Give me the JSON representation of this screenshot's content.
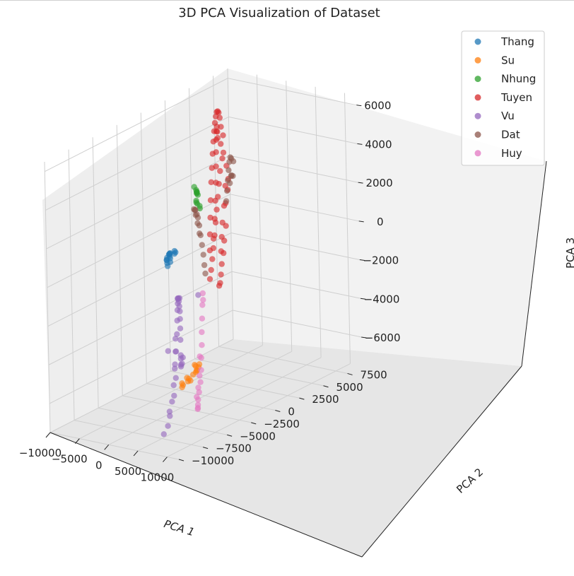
{
  "chart_data": {
    "type": "scatter",
    "projection": "3d",
    "title": "3D PCA Visualization of Dataset",
    "xlabel": "PCA 1",
    "ylabel": "PCA 2",
    "zlabel": "PCA 3",
    "xlim": [
      -10000,
      12000
    ],
    "ylim": [
      -10000,
      9000
    ],
    "zlim": [
      -7500,
      6500
    ],
    "x_ticks": [
      -10000,
      -5000,
      0,
      5000,
      10000
    ],
    "y_ticks": [
      -10000,
      -7500,
      -5000,
      -2500,
      0,
      2500,
      5000,
      7500
    ],
    "z_ticks": [
      -6000,
      -4000,
      -2000,
      0,
      2000,
      4000,
      6000
    ],
    "x_tick_labels": [
      "−10000",
      "−5000",
      "0",
      "5000",
      "10000"
    ],
    "y_tick_labels": [
      "−10000",
      "−7500",
      "−5000",
      "−2500",
      "0",
      "2500",
      "5000",
      "7500"
    ],
    "z_tick_labels": [
      "−6000",
      "−4000",
      "−2000",
      "0",
      "2000",
      "4000",
      "6000"
    ],
    "grid": true,
    "legend_position": "top-right",
    "series": [
      {
        "name": "Thang",
        "color": "#1f77b4",
        "points": [
          [
            -9500,
            2400,
            -1800
          ],
          [
            -9000,
            2100,
            -1500
          ],
          [
            -8600,
            1800,
            -1300
          ],
          [
            -8200,
            1500,
            -1100
          ],
          [
            -7800,
            1300,
            -1000
          ],
          [
            -7400,
            1100,
            -900
          ],
          [
            -7000,
            900,
            -800
          ],
          [
            -9300,
            2000,
            -1900
          ],
          [
            -8700,
            1600,
            -1600
          ],
          [
            -8100,
            1200,
            -1300
          ],
          [
            -7600,
            900,
            -1200
          ],
          [
            -7200,
            700,
            -1000
          ],
          [
            -9100,
            2600,
            -1400
          ],
          [
            -8400,
            2300,
            -1200
          ],
          [
            -7900,
            1900,
            -1000
          ]
        ]
      },
      {
        "name": "Su",
        "color": "#ff7f0e",
        "points": [
          [
            -3500,
            1200,
            -6500
          ],
          [
            -3000,
            800,
            -6300
          ],
          [
            -2500,
            600,
            -6600
          ],
          [
            -2000,
            400,
            -6400
          ],
          [
            -1500,
            300,
            -6200
          ],
          [
            -3200,
            300,
            -6900
          ],
          [
            -2700,
            -200,
            -6700
          ],
          [
            -2200,
            -400,
            -6800
          ],
          [
            -1800,
            -100,
            -6500
          ],
          [
            -1300,
            0,
            -6300
          ],
          [
            -3400,
            -300,
            -7000
          ],
          [
            -2900,
            -600,
            -7100
          ],
          [
            -2400,
            -800,
            -6900
          ],
          [
            -1600,
            -500,
            -6700
          ],
          [
            -1200,
            200,
            -6000
          ]
        ]
      },
      {
        "name": "Nhung",
        "color": "#2ca02c",
        "points": [
          [
            -8200,
            4600,
            1200
          ],
          [
            -7700,
            4200,
            1400
          ],
          [
            -7200,
            3900,
            1600
          ],
          [
            -6700,
            3600,
            1700
          ],
          [
            -6300,
            3300,
            1900
          ],
          [
            -8000,
            4400,
            800
          ],
          [
            -7500,
            4000,
            1000
          ],
          [
            -7000,
            3700,
            1200
          ],
          [
            -8600,
            5000,
            500
          ],
          [
            -8900,
            5200,
            300
          ],
          [
            -6800,
            3400,
            2000
          ],
          [
            -7400,
            4000,
            1500
          ]
        ]
      },
      {
        "name": "Tuyen",
        "color": "#d62728",
        "points": [
          [
            -3500,
            4500,
            4600
          ],
          [
            -3000,
            4000,
            5200
          ],
          [
            -2500,
            3600,
            5800
          ],
          [
            -2000,
            3200,
            6200
          ],
          [
            -1500,
            2800,
            6400
          ],
          [
            -1000,
            2400,
            6500
          ],
          [
            -500,
            2000,
            6400
          ],
          [
            0,
            1600,
            6200
          ],
          [
            500,
            1200,
            5900
          ],
          [
            1000,
            800,
            5500
          ],
          [
            1500,
            400,
            5000
          ],
          [
            2000,
            0,
            4400
          ],
          [
            2500,
            -400,
            3800
          ],
          [
            3000,
            -800,
            3000
          ],
          [
            3400,
            -1100,
            2200
          ],
          [
            3600,
            -1300,
            1400
          ],
          [
            3700,
            -1400,
            600
          ],
          [
            -3200,
            4200,
            3500
          ],
          [
            -2800,
            3700,
            3000
          ],
          [
            -2200,
            3200,
            2500
          ],
          [
            -1600,
            2700,
            2000
          ],
          [
            -1000,
            2200,
            1500
          ],
          [
            -400,
            1700,
            1000
          ],
          [
            200,
            1200,
            500
          ],
          [
            800,
            700,
            0
          ],
          [
            1400,
            200,
            -400
          ],
          [
            2000,
            -300,
            -800
          ],
          [
            2600,
            -800,
            -1100
          ],
          [
            -4200,
            5200,
            2800
          ],
          [
            -4000,
            4800,
            3600
          ],
          [
            -3600,
            4300,
            4200
          ],
          [
            -2600,
            3400,
            4800
          ],
          [
            -1800,
            2900,
            5300
          ],
          [
            -1200,
            2500,
            5700
          ],
          [
            -600,
            2100,
            5600
          ],
          [
            0,
            1700,
            5300
          ],
          [
            600,
            1300,
            4800
          ],
          [
            1200,
            900,
            4200
          ],
          [
            1800,
            500,
            3500
          ],
          [
            2300,
            100,
            2700
          ],
          [
            2800,
            -300,
            1900
          ],
          [
            3200,
            -700,
            1000
          ],
          [
            -3800,
            4800,
            1000
          ],
          [
            -3000,
            4300,
            0
          ],
          [
            -2000,
            3500,
            -500
          ],
          [
            -1000,
            2800,
            -900
          ],
          [
            0,
            2000,
            -1200
          ],
          [
            1000,
            1300,
            -1500
          ],
          [
            2000,
            600,
            -1700
          ],
          [
            3000,
            -100,
            -1600
          ],
          [
            -4600,
            5600,
            2000
          ],
          [
            -4400,
            5400,
            1500
          ],
          [
            -3300,
            4500,
            2000
          ],
          [
            -2400,
            3800,
            1200
          ],
          [
            -1400,
            3000,
            600
          ],
          [
            -400,
            2300,
            100
          ],
          [
            600,
            1600,
            -400
          ]
        ]
      },
      {
        "name": "Vu",
        "color": "#9467bd",
        "points": [
          [
            -1500,
            -1500,
            -5300
          ],
          [
            -1000,
            -1800,
            -5600
          ],
          [
            -500,
            -2100,
            -5400
          ],
          [
            0,
            -2400,
            -4800
          ],
          [
            500,
            -2700,
            -3900
          ],
          [
            1000,
            -3000,
            -3200
          ],
          [
            1500,
            -3300,
            -2600
          ],
          [
            2000,
            -3600,
            -2100
          ],
          [
            2600,
            -4000,
            -1700
          ],
          [
            3200,
            -4400,
            -1300
          ],
          [
            3800,
            -4800,
            -1000
          ],
          [
            4400,
            -5200,
            -900
          ],
          [
            5000,
            -5600,
            -1000
          ],
          [
            5600,
            -6000,
            -1200
          ],
          [
            6200,
            -6400,
            -1600
          ],
          [
            6600,
            -6700,
            -2200
          ],
          [
            6900,
            -7000,
            -3000
          ],
          [
            7100,
            -7300,
            -3800
          ],
          [
            7200,
            -7500,
            -4600
          ],
          [
            7200,
            -7700,
            -5400
          ],
          [
            7100,
            -7900,
            -6100
          ],
          [
            6900,
            -8000,
            -6600
          ],
          [
            6500,
            -8200,
            -7000
          ],
          [
            7500,
            -7400,
            -2200
          ],
          [
            7800,
            -7600,
            -2800
          ],
          [
            8000,
            -7800,
            -3400
          ],
          [
            7600,
            -7500,
            -4200
          ],
          [
            7900,
            -7900,
            -5000
          ],
          [
            7400,
            -8100,
            -5800
          ],
          [
            7700,
            -8300,
            -2600
          ],
          [
            3000,
            -4200,
            -1200
          ],
          [
            4000,
            -5000,
            -950
          ],
          [
            2200,
            -1800,
            -1700
          ],
          [
            -2500,
            -800,
            -5800
          ],
          [
            -2000,
            -1000,
            -5400
          ]
        ]
      },
      {
        "name": "Dat",
        "color": "#8c564b",
        "points": [
          [
            -3500,
            5500,
            3000
          ],
          [
            -3000,
            5000,
            3300
          ],
          [
            -2500,
            4600,
            3500
          ],
          [
            -2000,
            4200,
            3400
          ],
          [
            -1500,
            3800,
            3100
          ],
          [
            -1000,
            3400,
            2700
          ],
          [
            -500,
            3000,
            2300
          ],
          [
            0,
            2600,
            1900
          ],
          [
            -3800,
            5600,
            2200
          ],
          [
            -3200,
            5100,
            2400
          ],
          [
            -2600,
            4700,
            2500
          ],
          [
            -2000,
            4200,
            2300
          ],
          [
            -6300,
            3900,
            -1600
          ],
          [
            -6000,
            3600,
            -1000
          ],
          [
            -5700,
            3300,
            -400
          ],
          [
            -5400,
            3000,
            200
          ],
          [
            -5100,
            2700,
            700
          ],
          [
            -6500,
            4100,
            -2200
          ],
          [
            -6700,
            4300,
            -2700
          ],
          [
            -4600,
            2300,
            1000
          ],
          [
            -4000,
            1800,
            1400
          ],
          [
            -3400,
            1300,
            1600
          ],
          [
            -2600,
            900,
            1700
          ],
          [
            -1800,
            500,
            1600
          ],
          [
            -1000,
            200,
            1300
          ],
          [
            -200,
            -100,
            900
          ]
        ]
      },
      {
        "name": "Huy",
        "color": "#e377c2",
        "points": [
          [
            7000,
            -4200,
            -700
          ],
          [
            7400,
            -4500,
            -1200
          ],
          [
            7800,
            -4800,
            -1800
          ],
          [
            8200,
            -5100,
            -2400
          ],
          [
            8500,
            -5300,
            -3000
          ],
          [
            8700,
            -5500,
            -3600
          ],
          [
            8800,
            -5600,
            -4200
          ],
          [
            8800,
            -5700,
            -4800
          ],
          [
            8700,
            -5800,
            -5300
          ],
          [
            8500,
            -5800,
            -5700
          ],
          [
            8300,
            -5700,
            -6000
          ],
          [
            8100,
            -5600,
            -6200
          ],
          [
            7900,
            -5500,
            -6300
          ],
          [
            9100,
            -5900,
            -3400
          ],
          [
            9000,
            -5900,
            -4400
          ],
          [
            8900,
            -6000,
            -5000
          ],
          [
            8600,
            -6000,
            -5500
          ],
          [
            7200,
            -4300,
            -1000
          ]
        ]
      }
    ]
  }
}
